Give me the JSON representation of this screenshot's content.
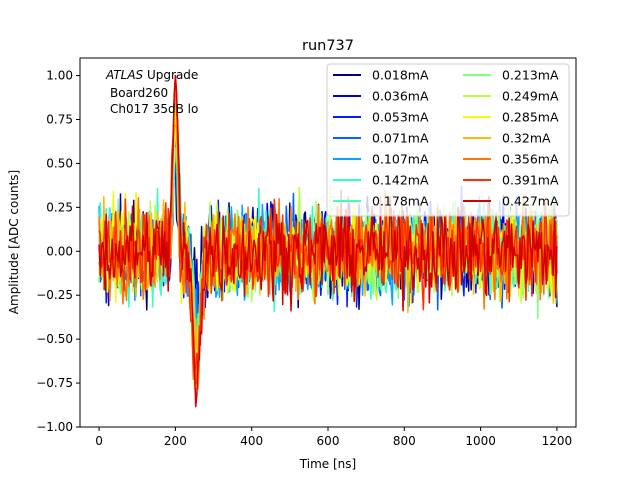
{
  "chart_data": {
    "type": "line",
    "title": "run737",
    "xlabel": "Time [ns]",
    "ylabel": "Amplitude [ADC counts]",
    "xlim": [
      -50,
      1250
    ],
    "ylim": [
      -1.0,
      1.1
    ],
    "xticks": [
      0,
      200,
      400,
      600,
      800,
      1000,
      1200
    ],
    "xtick_labels": [
      "0",
      "200",
      "400",
      "600",
      "800",
      "1000",
      "1200"
    ],
    "yticks": [
      -1.0,
      -0.75,
      -0.5,
      -0.25,
      0.0,
      0.25,
      0.5,
      0.75,
      1.0
    ],
    "ytick_labels": [
      "−1.00",
      "−0.75",
      "−0.50",
      "−0.25",
      "0.00",
      "0.25",
      "0.50",
      "0.75",
      "1.00"
    ],
    "grid": false,
    "legend_position": "top-right",
    "legend_columns": 2,
    "annotation": {
      "line1_italic": "ATLAS",
      "line1_rest": " Upgrade",
      "line2": "Board260",
      "line3": "Ch017 35dB lo"
    },
    "x_range": [
      0,
      1200
    ],
    "sample_interval_ns": 3.125,
    "pulse": {
      "positive_peak_x": 200,
      "positive_peak_y": 1.0,
      "negative_peak_x": 255,
      "negative_peak_y": -0.91
    },
    "noise_amplitude_approx": 0.35,
    "series": [
      {
        "name": "0.018mA",
        "color": "#00007f"
      },
      {
        "name": "0.036mA",
        "color": "#0000d5"
      },
      {
        "name": "0.053mA",
        "color": "#001cff"
      },
      {
        "name": "0.071mA",
        "color": "#0064ff"
      },
      {
        "name": "0.107mA",
        "color": "#00a8ff"
      },
      {
        "name": "0.142mA",
        "color": "#2bffce"
      },
      {
        "name": "0.178mA",
        "color": "#3dffb9"
      },
      {
        "name": "0.213mA",
        "color": "#80ff77"
      },
      {
        "name": "0.249mA",
        "color": "#b9ff3d"
      },
      {
        "name": "0.285mA",
        "color": "#f1fc06"
      },
      {
        "name": "0.32mA",
        "color": "#ffb900"
      },
      {
        "name": "0.356mA",
        "color": "#ff7700"
      },
      {
        "name": "0.391mA",
        "color": "#ff3000"
      },
      {
        "name": "0.427mA",
        "color": "#d40000"
      }
    ]
  }
}
